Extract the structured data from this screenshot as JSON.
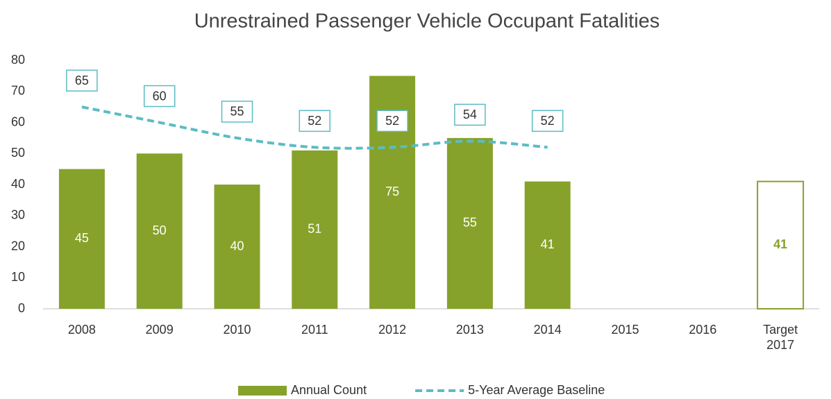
{
  "chart_data": {
    "type": "bar_line",
    "title": "Unrestrained Passenger Vehicle Occupant Fatalities",
    "categories": [
      "2008",
      "2009",
      "2010",
      "2011",
      "2012",
      "2013",
      "2014",
      "2015",
      "2016",
      "Target 2017"
    ],
    "series": [
      {
        "name": "Annual Count",
        "type": "bar",
        "color": "#86a22a",
        "values": [
          45,
          50,
          40,
          51,
          75,
          55,
          41,
          null,
          null,
          41
        ],
        "outlined_bars": [
          9
        ]
      },
      {
        "name": "5-Year Average Baseline",
        "type": "line",
        "color": "#5bbcc4",
        "dashed": true,
        "values": [
          65,
          60,
          55,
          52,
          52,
          54,
          52,
          null,
          null,
          null
        ]
      }
    ],
    "ylim": [
      0,
      80
    ],
    "yticks": [
      0,
      10,
      20,
      30,
      40,
      50,
      60,
      70,
      80
    ],
    "grid": false,
    "legend": "bottom"
  }
}
